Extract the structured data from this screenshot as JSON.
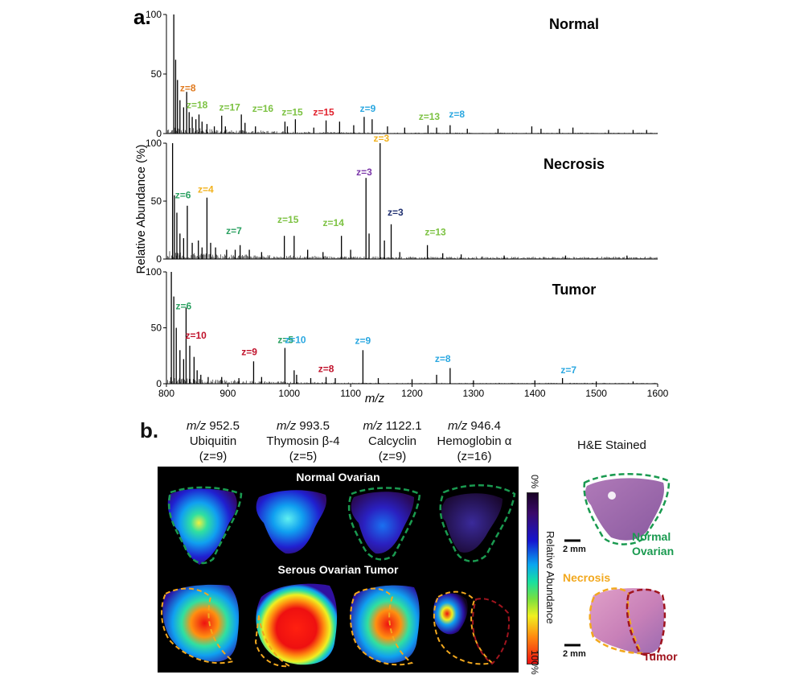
{
  "panel_a": {
    "label": "a.",
    "ylabel": "Relative Abundance (%)",
    "xlabel": "m/z",
    "x_ticks": [
      "800",
      "900",
      "1000",
      "1100",
      "1200",
      "1300",
      "1400",
      "1500",
      "1600"
    ]
  },
  "chart_data": [
    {
      "type": "line",
      "title": "Normal",
      "xlabel": "m/z",
      "ylabel": "Relative Abundance (%)",
      "xlim": [
        800,
        1600
      ],
      "ylim": [
        0,
        100
      ],
      "y_ticks": [
        "0",
        "50",
        "100"
      ],
      "peaks": [
        [
          812,
          100
        ],
        [
          815,
          62
        ],
        [
          818,
          45
        ],
        [
          822,
          28
        ],
        [
          828,
          22
        ],
        [
          833,
          35
        ],
        [
          837,
          18
        ],
        [
          842,
          14
        ],
        [
          848,
          12
        ],
        [
          853,
          16
        ],
        [
          858,
          10
        ],
        [
          866,
          8
        ],
        [
          878,
          6
        ],
        [
          890,
          15
        ],
        [
          896,
          6
        ],
        [
          922,
          16
        ],
        [
          928,
          9
        ],
        [
          945,
          6
        ],
        [
          993,
          10
        ],
        [
          997,
          6
        ],
        [
          1010,
          12
        ],
        [
          1040,
          5
        ],
        [
          1060,
          11
        ],
        [
          1082,
          10
        ],
        [
          1105,
          7
        ],
        [
          1122,
          14
        ],
        [
          1135,
          12
        ],
        [
          1160,
          6
        ],
        [
          1188,
          5
        ],
        [
          1226,
          7
        ],
        [
          1240,
          5
        ],
        [
          1262,
          7
        ],
        [
          1290,
          4
        ],
        [
          1340,
          4
        ],
        [
          1395,
          6
        ],
        [
          1410,
          4
        ],
        [
          1440,
          4
        ],
        [
          1462,
          5
        ],
        [
          1520,
          3
        ],
        [
          1560,
          3
        ],
        [
          1582,
          3
        ]
      ],
      "annotations": [
        {
          "text": "z=8",
          "x": 835,
          "y": 34,
          "color": "#e07a1f"
        },
        {
          "text": "z=18",
          "x": 850,
          "y": 20,
          "color": "#7cc242"
        },
        {
          "text": "z=17",
          "x": 903,
          "y": 18,
          "color": "#7cc242"
        },
        {
          "text": "z=16",
          "x": 957,
          "y": 17,
          "color": "#7cc242"
        },
        {
          "text": "z=15",
          "x": 1005,
          "y": 14,
          "color": "#7cc242"
        },
        {
          "text": "z=15",
          "x": 1056,
          "y": 14,
          "color": "#e01e2a"
        },
        {
          "text": "z=9",
          "x": 1128,
          "y": 17,
          "color": "#2aa7e0"
        },
        {
          "text": "z=13",
          "x": 1228,
          "y": 10,
          "color": "#7cc242"
        },
        {
          "text": "z=8",
          "x": 1273,
          "y": 12,
          "color": "#2aa7e0"
        }
      ]
    },
    {
      "type": "line",
      "title": "Necrosis",
      "xlabel": "m/z",
      "ylabel": "Relative Abundance (%)",
      "xlim": [
        800,
        1600
      ],
      "ylim": [
        0,
        100
      ],
      "y_ticks": [
        "0",
        "50",
        "100"
      ],
      "peaks": [
        [
          810,
          100
        ],
        [
          813,
          55
        ],
        [
          817,
          40
        ],
        [
          822,
          22
        ],
        [
          828,
          18
        ],
        [
          834,
          46
        ],
        [
          842,
          14
        ],
        [
          852,
          16
        ],
        [
          858,
          10
        ],
        [
          866,
          53
        ],
        [
          872,
          14
        ],
        [
          880,
          10
        ],
        [
          898,
          8
        ],
        [
          912,
          8
        ],
        [
          920,
          12
        ],
        [
          935,
          8
        ],
        [
          955,
          6
        ],
        [
          992,
          20
        ],
        [
          1008,
          20
        ],
        [
          1030,
          8
        ],
        [
          1055,
          6
        ],
        [
          1085,
          20
        ],
        [
          1100,
          8
        ],
        [
          1125,
          70
        ],
        [
          1130,
          22
        ],
        [
          1148,
          100
        ],
        [
          1155,
          16
        ],
        [
          1166,
          30
        ],
        [
          1180,
          6
        ],
        [
          1225,
          12
        ],
        [
          1250,
          5
        ],
        [
          1280,
          4
        ],
        [
          1350,
          3
        ],
        [
          1450,
          3
        ],
        [
          1550,
          3
        ]
      ],
      "annotations": [
        {
          "text": "z=6",
          "x": 827,
          "y": 51,
          "color": "#2aa060"
        },
        {
          "text": "z=4",
          "x": 864,
          "y": 56,
          "color": "#f2b21e"
        },
        {
          "text": "z=7",
          "x": 910,
          "y": 20,
          "color": "#2aa060"
        },
        {
          "text": "z=15",
          "x": 998,
          "y": 30,
          "color": "#7cc242"
        },
        {
          "text": "z=14",
          "x": 1072,
          "y": 27,
          "color": "#7cc242"
        },
        {
          "text": "z=3",
          "x": 1122,
          "y": 71,
          "color": "#7a35a8"
        },
        {
          "text": "z=3",
          "x": 1150,
          "y": 100,
          "color": "#f2b21e"
        },
        {
          "text": "z=3",
          "x": 1173,
          "y": 36,
          "color": "#1f2f70"
        },
        {
          "text": "z=13",
          "x": 1238,
          "y": 19,
          "color": "#7cc242"
        }
      ]
    },
    {
      "type": "line",
      "title": "Tumor",
      "xlabel": "m/z",
      "ylabel": "Relative Abundance (%)",
      "xlim": [
        800,
        1600
      ],
      "ylim": [
        0,
        100
      ],
      "y_ticks": [
        "0",
        "50",
        "100"
      ],
      "peaks": [
        [
          808,
          100
        ],
        [
          812,
          78
        ],
        [
          816,
          50
        ],
        [
          822,
          30
        ],
        [
          828,
          22
        ],
        [
          832,
          68
        ],
        [
          838,
          34
        ],
        [
          845,
          24
        ],
        [
          850,
          12
        ],
        [
          856,
          8
        ],
        [
          868,
          6
        ],
        [
          890,
          6
        ],
        [
          918,
          5
        ],
        [
          942,
          20
        ],
        [
          955,
          6
        ],
        [
          993,
          32
        ],
        [
          1008,
          12
        ],
        [
          1012,
          8
        ],
        [
          1035,
          5
        ],
        [
          1060,
          6
        ],
        [
          1075,
          5
        ],
        [
          1120,
          30
        ],
        [
          1145,
          5
        ],
        [
          1200,
          4
        ],
        [
          1240,
          8
        ],
        [
          1262,
          14
        ],
        [
          1300,
          3
        ],
        [
          1400,
          3
        ],
        [
          1445,
          5
        ],
        [
          1500,
          2
        ],
        [
          1560,
          2
        ]
      ],
      "annotations": [
        {
          "text": "z=6",
          "x": 828,
          "y": 65,
          "color": "#2aa060"
        },
        {
          "text": "z=10",
          "x": 848,
          "y": 39,
          "color": "#c0102a"
        },
        {
          "text": "z=9",
          "x": 935,
          "y": 24,
          "color": "#c0102a"
        },
        {
          "text": "z=5",
          "x": 994,
          "y": 35,
          "color": "#2aa060"
        },
        {
          "text": "z=10",
          "x": 1010,
          "y": 35,
          "color": "#2aa7e0"
        },
        {
          "text": "z=8",
          "x": 1060,
          "y": 9,
          "color": "#c0102a"
        },
        {
          "text": "z=9",
          "x": 1120,
          "y": 34,
          "color": "#2aa7e0"
        },
        {
          "text": "z=8",
          "x": 1250,
          "y": 18,
          "color": "#2aa7e0"
        },
        {
          "text": "z=7",
          "x": 1455,
          "y": 8,
          "color": "#2aa7e0"
        }
      ]
    }
  ],
  "panel_b": {
    "label": "b.",
    "columns": [
      {
        "mz_prefix": "m/z",
        "mz_value": "952.5",
        "protein": "Ubiquitin",
        "charge": "(z=9)"
      },
      {
        "mz_prefix": "m/z",
        "mz_value": "993.5",
        "protein": "Thymosin β-4",
        "charge": "(z=5)"
      },
      {
        "mz_prefix": "m/z",
        "mz_value": "1122.1",
        "protein": "Calcyclin",
        "charge": "(z=9)"
      },
      {
        "mz_prefix": "m/z",
        "mz_value": "946.4",
        "protein": "Hemoglobin α",
        "charge": "(z=16)"
      }
    ],
    "row_titles": [
      "Normal Ovarian",
      "Serous Ovarian Tumor"
    ],
    "colorbar": {
      "top": "0%",
      "bottom": "100%",
      "label": "Relative Abundance"
    },
    "he": {
      "title": "H&E Stained",
      "scale": "2 mm",
      "normal_label_1": "Normal",
      "normal_label_2": "Ovarian",
      "necrosis_label": "Necrosis",
      "tumor_label": "Tumor"
    },
    "colors": {
      "normal": "#1a9a50",
      "necrosis": "#f2a81e",
      "tumor": "#a0141e"
    }
  }
}
